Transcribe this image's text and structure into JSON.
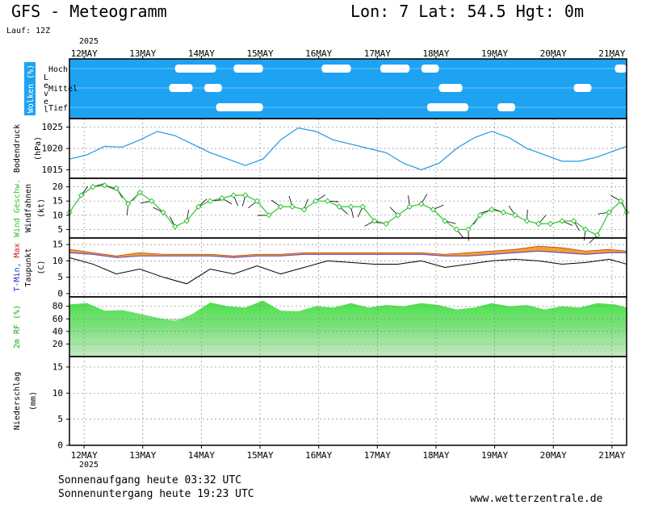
{
  "header": {
    "title": "GFS - Meteogramm",
    "location": "Lon: 7 Lat: 54.5 Hgt: 0m",
    "run": "Lauf: 12Z",
    "year": "2025"
  },
  "footer": {
    "sunrise": "Sonnenaufgang heute 03:32 UTC",
    "sunset": "Sonnenuntergang heute 19:23 UTC",
    "site": "www.wetterzentrale.de"
  },
  "colors": {
    "cloud_bg": "#1ea3f2",
    "pressure": "#1c9ae0",
    "wind_speed": "#33c233",
    "temp_band": "#f0a030",
    "temp_line": "#7050c0",
    "humidity": "#33dd33"
  },
  "chart_data": [
    {
      "type": "area",
      "panel": "cloud",
      "ylabel": "Wolken (%)",
      "side_label": "Level",
      "levels": [
        "Hoch",
        "Mittel",
        "Tief"
      ],
      "categories": [
        "12MAY",
        "13MAY",
        "14MAY",
        "15MAY",
        "16MAY",
        "17MAY",
        "18MAY",
        "19MAY",
        "20MAY",
        "21MAY"
      ],
      "xlim": [
        12.0,
        21.5
      ],
      "clearings": [
        {
          "level": "Hoch",
          "x": [
            13.8,
            14.5
          ]
        },
        {
          "level": "Hoch",
          "x": [
            14.8,
            15.3
          ]
        },
        {
          "level": "Hoch",
          "x": [
            16.3,
            16.8
          ]
        },
        {
          "level": "Hoch",
          "x": [
            17.3,
            17.8
          ]
        },
        {
          "level": "Hoch",
          "x": [
            18.0,
            18.3
          ]
        },
        {
          "level": "Hoch",
          "x": [
            21.3,
            21.5
          ]
        },
        {
          "level": "Mittel",
          "x": [
            13.7,
            14.1
          ]
        },
        {
          "level": "Mittel",
          "x": [
            14.3,
            14.6
          ]
        },
        {
          "level": "Mittel",
          "x": [
            18.3,
            18.7
          ]
        },
        {
          "level": "Mittel",
          "x": [
            20.6,
            20.9
          ]
        },
        {
          "level": "Tief",
          "x": [
            14.5,
            15.3
          ]
        },
        {
          "level": "Tief",
          "x": [
            18.1,
            18.8
          ]
        },
        {
          "level": "Tief",
          "x": [
            19.3,
            19.6
          ]
        }
      ]
    },
    {
      "type": "line",
      "panel": "pressure",
      "ylabel": "Bodendruck",
      "unit": "(hPa)",
      "yticks": [
        1015,
        1020,
        1025
      ],
      "ylim": [
        1013,
        1027
      ],
      "x": [
        12.0,
        12.3,
        12.6,
        12.9,
        13.2,
        13.5,
        13.8,
        14.1,
        14.4,
        14.7,
        15.0,
        15.3,
        15.6,
        15.9,
        16.2,
        16.5,
        16.8,
        17.1,
        17.4,
        17.7,
        18.0,
        18.3,
        18.6,
        18.9,
        19.2,
        19.5,
        19.8,
        20.1,
        20.4,
        20.7,
        21.0,
        21.3,
        21.5
      ],
      "series": [
        {
          "values": [
            1017.5,
            1018.5,
            1020.5,
            1020.3,
            1022.0,
            1024.0,
            1023.0,
            1021.0,
            1019.0,
            1017.5,
            1016.0,
            1017.5,
            1022.0,
            1024.8,
            1024.0,
            1022.0,
            1021.0,
            1020.0,
            1019.0,
            1016.5,
            1015.0,
            1016.5,
            1020.0,
            1022.5,
            1024.0,
            1022.5,
            1020.0,
            1018.5,
            1017.0,
            1017.0,
            1018.0,
            1019.5,
            1020.5
          ]
        }
      ]
    },
    {
      "type": "line",
      "panel": "wind",
      "ylabel": "Wind Geschw.",
      "sublabel": "Windfahnen",
      "unit": "(kt)",
      "yticks": [
        5,
        10,
        15,
        20
      ],
      "ylim": [
        2,
        23
      ],
      "x": [
        12.0,
        12.2,
        12.4,
        12.6,
        12.8,
        13.0,
        13.2,
        13.4,
        13.6,
        13.8,
        14.0,
        14.2,
        14.4,
        14.6,
        14.8,
        15.0,
        15.2,
        15.4,
        15.6,
        15.8,
        16.0,
        16.2,
        16.4,
        16.6,
        16.8,
        17.0,
        17.2,
        17.4,
        17.6,
        17.8,
        18.0,
        18.2,
        18.4,
        18.6,
        18.8,
        19.0,
        19.2,
        19.4,
        19.6,
        19.8,
        20.0,
        20.2,
        20.4,
        20.6,
        20.8,
        21.0,
        21.2,
        21.4,
        21.5
      ],
      "series": [
        {
          "name": "Wind Geschw.",
          "values": [
            11,
            17,
            20,
            20.5,
            19.5,
            14,
            18,
            15,
            11,
            6,
            8,
            13,
            15,
            16,
            17,
            17,
            15,
            10,
            13,
            13,
            12,
            15,
            15,
            13,
            13,
            13,
            8,
            7,
            10,
            13,
            14,
            12,
            8,
            5,
            5,
            10,
            12,
            11,
            10,
            8,
            7,
            7,
            8,
            8,
            5,
            3,
            11,
            15,
            11
          ]
        }
      ]
    },
    {
      "type": "line",
      "panel": "temperature",
      "ylabel": "T-Min, Max",
      "sublabel": "Taupunkt",
      "unit": "(C)",
      "yticks": [
        0,
        5,
        10,
        15
      ],
      "ylim": [
        -1,
        17
      ],
      "x": [
        12.0,
        12.4,
        12.8,
        13.2,
        13.6,
        14.0,
        14.4,
        14.8,
        15.2,
        15.6,
        16.0,
        16.4,
        16.8,
        17.2,
        17.6,
        18.0,
        18.4,
        18.8,
        19.2,
        19.6,
        20.0,
        20.4,
        20.8,
        21.2,
        21.5
      ],
      "series": [
        {
          "name": "Max",
          "values": [
            13.5,
            12.5,
            11.5,
            12.5,
            12.0,
            12.0,
            12.0,
            11.5,
            12.0,
            12.0,
            12.5,
            12.5,
            12.5,
            12.5,
            12.5,
            12.5,
            12.0,
            12.5,
            13.0,
            13.5,
            14.5,
            14.0,
            13.0,
            13.5,
            13.0
          ]
        },
        {
          "name": "Min",
          "values": [
            12.5,
            12.0,
            11.0,
            11.5,
            11.5,
            11.5,
            11.5,
            11.0,
            11.5,
            11.5,
            12.0,
            12.0,
            12.0,
            12.0,
            12.0,
            12.0,
            11.5,
            11.5,
            12.0,
            12.5,
            13.0,
            12.5,
            12.0,
            12.5,
            12.5
          ]
        },
        {
          "name": "Taupunkt",
          "values": [
            11.0,
            9.0,
            6.0,
            7.5,
            5.0,
            3.0,
            7.5,
            6.0,
            8.5,
            6.0,
            8.0,
            10.0,
            9.5,
            9.0,
            9.0,
            10.0,
            8.0,
            9.0,
            10.0,
            10.5,
            10.0,
            9.0,
            9.5,
            10.5,
            9.0
          ]
        }
      ]
    },
    {
      "type": "area",
      "panel": "humidity",
      "ylabel": "2m RF (%)",
      "yticks": [
        20,
        40,
        60,
        80
      ],
      "ylim": [
        0,
        95
      ],
      "x": [
        12.0,
        12.3,
        12.6,
        12.9,
        13.2,
        13.5,
        13.8,
        14.1,
        14.4,
        14.7,
        15.0,
        15.3,
        15.6,
        15.9,
        16.2,
        16.5,
        16.8,
        17.1,
        17.4,
        17.7,
        18.0,
        18.3,
        18.6,
        18.9,
        19.2,
        19.5,
        19.8,
        20.1,
        20.4,
        20.7,
        21.0,
        21.3,
        21.5
      ],
      "series": [
        {
          "values": [
            83,
            85,
            73,
            74,
            68,
            62,
            56,
            68,
            86,
            80,
            78,
            89,
            73,
            72,
            80,
            78,
            85,
            78,
            82,
            80,
            85,
            82,
            75,
            78,
            85,
            80,
            82,
            75,
            80,
            78,
            85,
            83,
            78
          ]
        }
      ]
    },
    {
      "type": "bar",
      "panel": "precipitation",
      "ylabel": "Niederschlag",
      "unit": "(mm)",
      "yticks": [
        0,
        5,
        10,
        15
      ],
      "ylim": [
        0,
        17
      ],
      "values": []
    }
  ]
}
